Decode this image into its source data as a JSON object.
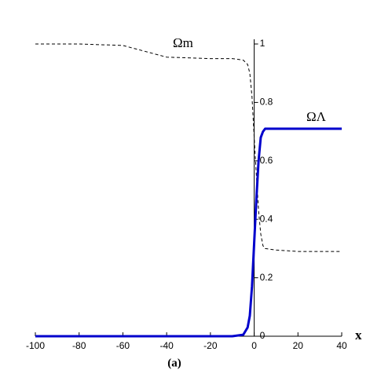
{
  "chart_data": {
    "type": "line",
    "x": [
      -100,
      -80,
      -60,
      -50,
      -40,
      -20,
      -10,
      -5,
      -3,
      -2,
      -1,
      0,
      1,
      2,
      3,
      4,
      5,
      10,
      20,
      40
    ],
    "series": [
      {
        "name": "Ωm",
        "color": "#000000",
        "dashed": true,
        "values": [
          1,
          1,
          0.995,
          0.975,
          0.955,
          0.95,
          0.95,
          0.945,
          0.93,
          0.9,
          0.82,
          0.68,
          0.55,
          0.43,
          0.35,
          0.31,
          0.3,
          0.295,
          0.29,
          0.29
        ]
      },
      {
        "name": "ΩΛ",
        "color": "#0000cc",
        "dashed": false,
        "values": [
          0,
          0,
          0,
          0,
          0,
          0,
          0,
          0.005,
          0.03,
          0.07,
          0.17,
          0.32,
          0.47,
          0.6,
          0.68,
          0.7,
          0.71,
          0.71,
          0.71,
          0.71
        ]
      }
    ],
    "xlim": [
      -100,
      40
    ],
    "ylim": [
      0,
      1
    ],
    "xticks": [
      -100,
      -80,
      -60,
      -40,
      -20,
      0,
      20,
      40
    ],
    "yticks": [
      0,
      0.2,
      0.4,
      0.6,
      0.8,
      1
    ],
    "x_label": "x",
    "caption": "(a)"
  }
}
